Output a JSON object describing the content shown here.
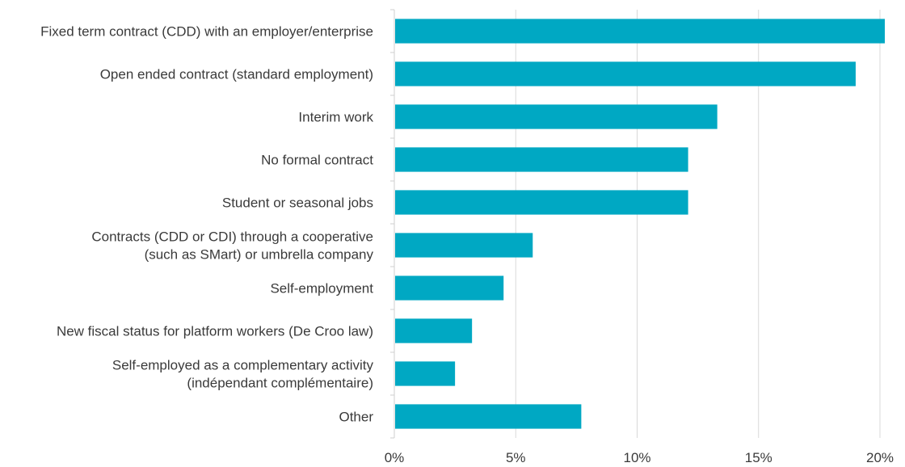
{
  "chart_data": {
    "type": "bar",
    "orientation": "horizontal",
    "title": "",
    "xlabel": "",
    "ylabel": "",
    "categories": [
      [
        "Fixed term contract (CDD) with an employer/enterprise"
      ],
      [
        "Open ended contract (standard employment)"
      ],
      [
        "Interim work"
      ],
      [
        "No formal contract"
      ],
      [
        "Student or seasonal jobs"
      ],
      [
        "Contracts (CDD or CDI) through a cooperative",
        "(such as SMart) or umbrella company"
      ],
      [
        "Self-employment"
      ],
      [
        "New fiscal status for platform workers (De Croo law)"
      ],
      [
        "Self-employed as a complementary activity",
        "(indépendant complémentaire)"
      ],
      [
        "Other"
      ]
    ],
    "values": [
      20.2,
      19.0,
      13.3,
      12.1,
      12.1,
      5.7,
      4.5,
      3.2,
      2.5,
      7.7
    ],
    "xlim": [
      0,
      20
    ],
    "xticks": [
      0,
      5,
      10,
      15,
      20
    ],
    "xtick_labels": [
      "0%",
      "5%",
      "10%",
      "15%",
      "20%"
    ],
    "grid": "vertical",
    "legend": "none",
    "colors": {
      "bar": "#00a8c3",
      "grid": "#d9d9d9",
      "text": "#3a3a3a"
    }
  }
}
